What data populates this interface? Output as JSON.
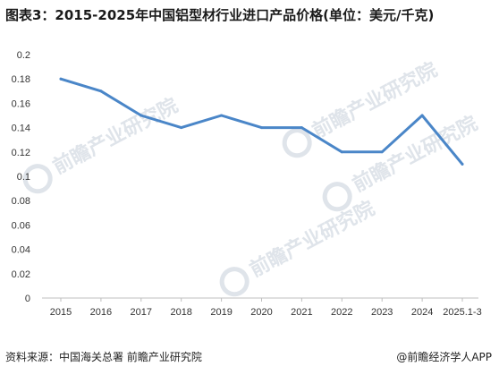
{
  "title": "图表3：2015-2025年中国铝型材行业进口产品价格(单位：美元/千克)",
  "source": "资料来源：中国海关总署 前瞻产业研究院",
  "brand": "@前瞻经济学人APP",
  "watermark": "前瞻产业研究院",
  "colors": {
    "line": "#4a86c8",
    "axis": "#bfbfbf",
    "watermark": "#dfe4ea"
  },
  "chart_data": {
    "type": "line",
    "title": "图表3：2015-2025年中国铝型材行业进口产品价格(单位：美元/千克)",
    "xlabel": "",
    "ylabel": "",
    "categories": [
      "2015",
      "2016",
      "2017",
      "2018",
      "2019",
      "2020",
      "2021",
      "2022",
      "2023",
      "2024",
      "2025.1-3"
    ],
    "series": [
      {
        "values": [
          0.18,
          0.17,
          0.15,
          0.14,
          0.15,
          0.14,
          0.14,
          0.12,
          0.12,
          0.15,
          0.11
        ]
      }
    ],
    "ylim": [
      0,
      0.2
    ],
    "yticks": [
      "0",
      "0.02",
      "0.04",
      "0.06",
      "0.08",
      "0.1",
      "0.12",
      "0.14",
      "0.16",
      "0.18",
      "0.2"
    ],
    "grid": false,
    "legend": "none"
  }
}
